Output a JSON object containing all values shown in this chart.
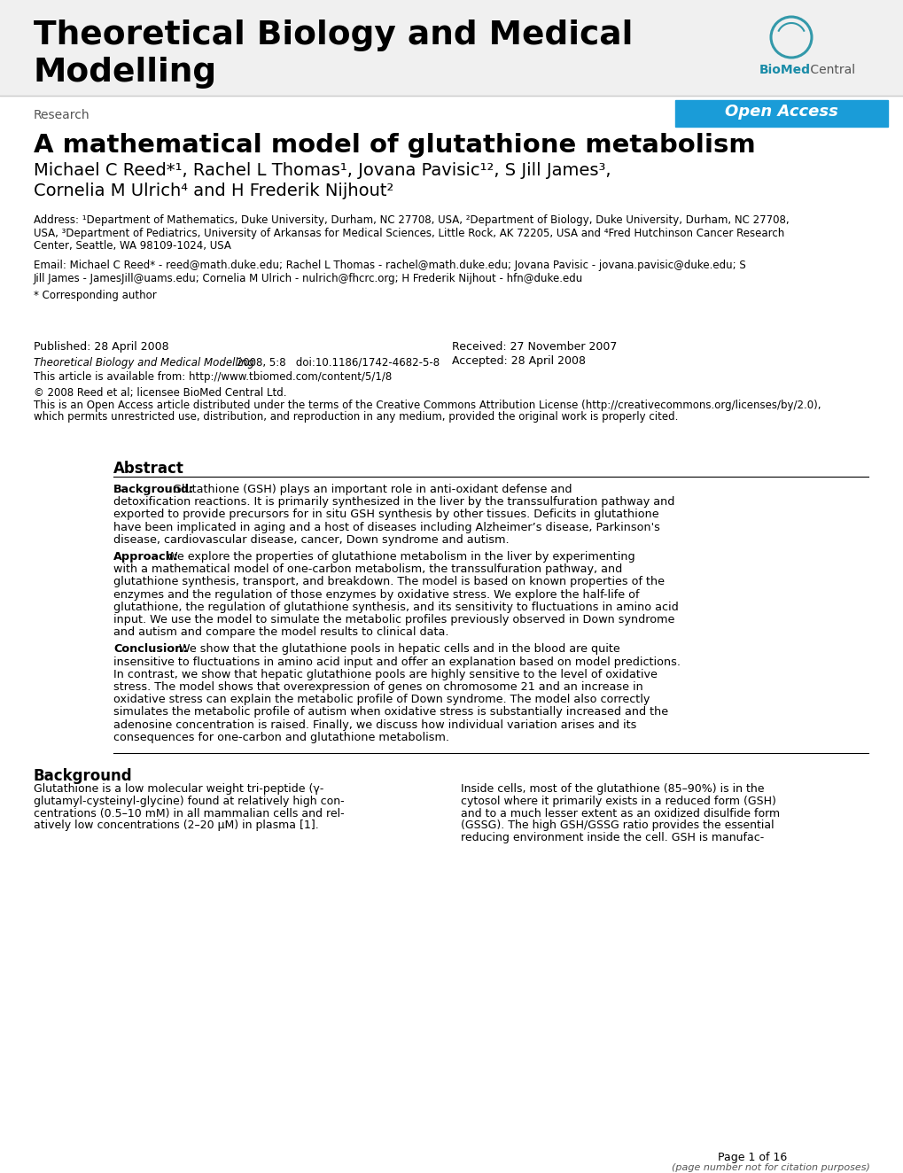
{
  "journal_title_line1": "Theoretical Biology and Medical",
  "journal_title_line2": "Modelling",
  "open_access_text": "Open Access",
  "open_access_bg": "#1a9cd8",
  "research_label": "Research",
  "article_title": "A mathematical model of glutathione metabolism",
  "authors_line1": "Michael C Reed*¹, Rachel L Thomas¹, Jovana Pavisic¹², S Jill James³,",
  "authors_line2": "Cornelia M Ulrich⁴ and H Frederik Nijhout²",
  "address_line1": "Address: ¹Department of Mathematics, Duke University, Durham, NC 27708, USA, ²Department of Biology, Duke University, Durham, NC 27708,",
  "address_line2": "USA, ³Department of Pediatrics, University of Arkansas for Medical Sciences, Little Rock, AK 72205, USA and ⁴Fred Hutchinson Cancer Research",
  "address_line3": "Center, Seattle, WA 98109-1024, USA",
  "email_line1": "Email: Michael C Reed* - reed@math.duke.edu; Rachel L Thomas - rachel@math.duke.edu; Jovana Pavisic - jovana.pavisic@duke.edu; S",
  "email_line2": "Jill James - JamesJill@uams.edu; Cornelia M Ulrich - nulrich@fhcrc.org; H Frederik Nijhout - hfn@duke.edu",
  "corresponding_text": "* Corresponding author",
  "published_text": "Published: 28 April 2008",
  "journal_ref_italic": "Theoretical Biology and Medical Modelling",
  "journal_ref_normal": " 2008, 5:8   doi:10.1186/1742-4682-5-8",
  "available_text": "This article is available from: http://www.tbiomed.com/content/5/1/8",
  "copyright_line1": "© 2008 Reed et al; licensee BioMed Central Ltd.",
  "copyright_line2a": "This is an Open Access article distributed under the terms of the Creative Commons Attribution License (http://creativecommons.org/licenses/by/2.0),",
  "copyright_line2b": "which permits unrestricted use, distribution, and reproduction in any medium, provided the original work is properly cited.",
  "received_text": "Received: 27 November 2007",
  "accepted_text": "Accepted: 28 April 2008",
  "abstract_title": "Abstract",
  "bg_label": "Background:",
  "bg_lines": [
    " Glutathione (GSH) plays an important role in anti-oxidant defense and",
    "detoxification reactions. It is primarily synthesized in the liver by the transsulfuration pathway and",
    "exported to provide precursors for in situ GSH synthesis by other tissues. Deficits in glutathione",
    "have been implicated in aging and a host of diseases including Alzheimer’s disease, Parkinson's",
    "disease, cardiovascular disease, cancer, Down syndrome and autism."
  ],
  "ap_label": "Approach:",
  "ap_lines": [
    " We explore the properties of glutathione metabolism in the liver by experimenting",
    "with a mathematical model of one-carbon metabolism, the transsulfuration pathway, and",
    "glutathione synthesis, transport, and breakdown. The model is based on known properties of the",
    "enzymes and the regulation of those enzymes by oxidative stress. We explore the half-life of",
    "glutathione, the regulation of glutathione synthesis, and its sensitivity to fluctuations in amino acid",
    "input. We use the model to simulate the metabolic profiles previously observed in Down syndrome",
    "and autism and compare the model results to clinical data."
  ],
  "co_label": "Conclusion:",
  "co_lines": [
    " We show that the glutathione pools in hepatic cells and in the blood are quite",
    "insensitive to fluctuations in amino acid input and offer an explanation based on model predictions.",
    "In contrast, we show that hepatic glutathione pools are highly sensitive to the level of oxidative",
    "stress. The model shows that overexpression of genes on chromosome 21 and an increase in",
    "oxidative stress can explain the metabolic profile of Down syndrome. The model also correctly",
    "simulates the metabolic profile of autism when oxidative stress is substantially increased and the",
    "adenosine concentration is raised. Finally, we discuss how individual variation arises and its",
    "consequences for one-carbon and glutathione metabolism."
  ],
  "bg_section_title": "Background",
  "bg_col1_lines": [
    "Glutathione is a low molecular weight tri-peptide (γ-",
    "glutamyl-cysteinyl-glycine) found at relatively high con-",
    "centrations (0.5–10 mM) in all mammalian cells and rel-",
    "atively low concentrations (2–20 μM) in plasma [1]."
  ],
  "bg_col2_lines": [
    "Inside cells, most of the glutathione (85–90%) is in the",
    "cytosol where it primarily exists in a reduced form (GSH)",
    "and to a much lesser extent as an oxidized disulfide form",
    "(GSSG). The high GSH/GSSG ratio provides the essential",
    "reducing environment inside the cell. GSH is manufac-"
  ],
  "page_footer": "Page 1 of 16",
  "page_footer_sub": "(page number not for citation purposes)"
}
